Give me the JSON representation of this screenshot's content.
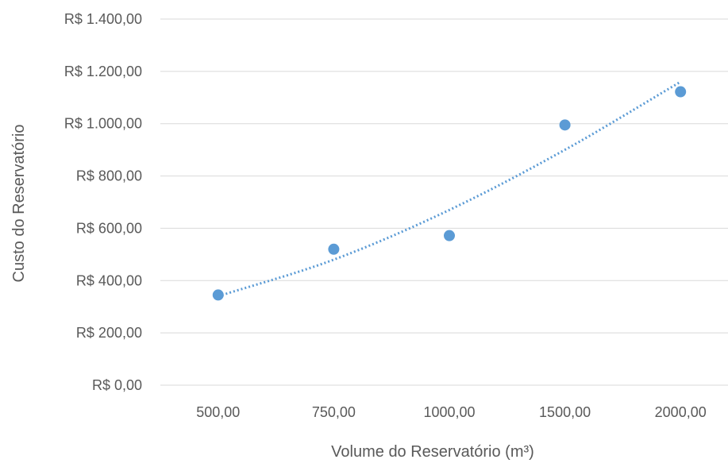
{
  "chart_data": {
    "type": "scatter",
    "title": "",
    "xlabel": "Volume do Reservatório (m³)",
    "ylabel": "Custo do Reservatório",
    "categories": [
      "500,00",
      "750,00",
      "1000,00",
      "1500,00",
      "2000,00"
    ],
    "y_tick_labels": [
      "R$ 0,00",
      "R$ 200,00",
      "R$ 400,00",
      "R$ 600,00",
      "R$ 800,00",
      "R$ 1.000,00",
      "R$ 1.200,00",
      "R$ 1.400,00"
    ],
    "y_ticks": [
      0,
      200,
      400,
      600,
      800,
      1000,
      1200,
      1400
    ],
    "ylim": [
      0,
      1400
    ],
    "grid": true,
    "legend": "none",
    "series": [
      {
        "values": [
          345,
          520,
          572,
          995,
          1122
        ],
        "color": "#5B9BD5",
        "marker": "circle"
      }
    ],
    "trendline": {
      "style": "dotted",
      "color": "#5B9BD5",
      "values": [
        340,
        480,
        670,
        900,
        1160
      ]
    }
  }
}
